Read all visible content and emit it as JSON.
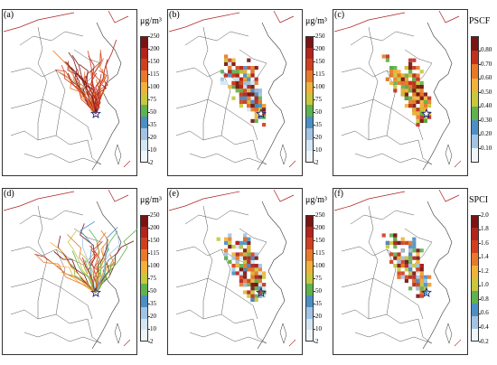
{
  "panels": [
    {
      "id": "a",
      "label": "(a)",
      "legend": "conc",
      "style": "traj",
      "seed": 3
    },
    {
      "id": "b",
      "label": "(b)",
      "legend": "conc",
      "style": "grid",
      "seed": 7
    },
    {
      "id": "c",
      "label": "(c)",
      "legend": "pscf",
      "style": "grid",
      "seed": 11
    },
    {
      "id": "d",
      "label": "(d)",
      "legend": "conc",
      "style": "traj2",
      "seed": 5
    },
    {
      "id": "e",
      "label": "(e)",
      "legend": "conc",
      "style": "grid",
      "seed": 13
    },
    {
      "id": "f",
      "label": "(f)",
      "legend": "spci",
      "style": "grid2",
      "seed": 17
    }
  ],
  "legends": {
    "conc": {
      "title": "μg/m³",
      "ticks": [
        "250",
        "200",
        "150",
        "115",
        "100",
        "75",
        "50",
        "35",
        "20",
        "10",
        "2"
      ],
      "colors": [
        "#7a1414",
        "#b2241c",
        "#d23f1e",
        "#e8792a",
        "#f0b238",
        "#c8c83c",
        "#5fb24e",
        "#4c8fc4",
        "#a2c4e4",
        "#d4e6f4",
        "#eef6fb"
      ]
    },
    "pscf": {
      "title": "PSCF",
      "ticks": [
        "0.80",
        "0.70",
        "0.60",
        "0.50",
        "0.40",
        "0.30",
        "0.20",
        "0.10"
      ],
      "colors": [
        "#7a1414",
        "#c2301e",
        "#e8792a",
        "#f0b238",
        "#c8c83c",
        "#5fb24e",
        "#4c8fc4",
        "#a2c4e4",
        "#eef6fb"
      ]
    },
    "spci": {
      "title": "SPCI",
      "ticks": [
        "2.0",
        "1.8",
        "1.6",
        "1.4",
        "1.2",
        "1.0",
        "0.8",
        "0.6",
        "0.4",
        "0.2"
      ],
      "colors": [
        "#7a1414",
        "#b2241c",
        "#d23f1e",
        "#e8792a",
        "#f0b238",
        "#c8c83c",
        "#5fb24e",
        "#4c8fc4",
        "#a2c4e4",
        "#eef6fb"
      ]
    }
  },
  "colors": {
    "border": "#444444",
    "coast": "#333333",
    "national_border": "#b02020",
    "site_marker": "#1a2a7a"
  }
}
